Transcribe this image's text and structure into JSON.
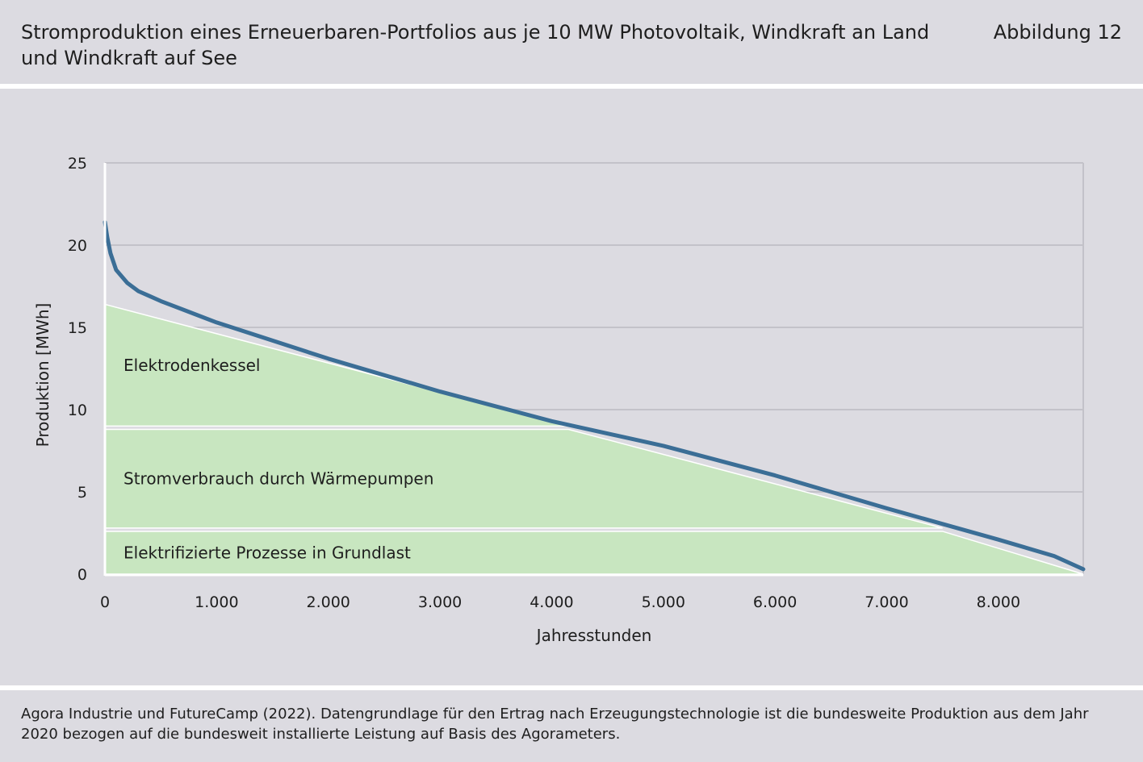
{
  "header": {
    "title": "Stromproduktion eines Erneuerbaren-Portfolios aus je 10 MW Photovoltaik, Windkraft an Land und Windkraft auf See",
    "figure_label": "Abbildung 12"
  },
  "footer": {
    "source": "Agora Industrie und FutureCamp (2022). Datengrundlage für den Ertrag nach Erzeugungstechnologie ist die bundesweite Produktion aus dem Jahr 2020 bezogen auf die bundesweit installierte Leistung auf Basis des Agorameters."
  },
  "colors": {
    "line": "#3b6e96",
    "fill": "#c8e6c0",
    "grid": "#c3c2c9",
    "plot_bg": "#dcdbe1",
    "separator": "#ffffff"
  },
  "chart_data": {
    "type": "line",
    "title": "",
    "xlabel": "Jahresstunden",
    "ylabel": "Produktion [MWh]",
    "xlim": [
      0,
      8760
    ],
    "ylim": [
      0,
      25
    ],
    "x_ticks": [
      0,
      1000,
      2000,
      3000,
      4000,
      5000,
      6000,
      7000,
      8000
    ],
    "x_tick_labels": [
      "0",
      "1.000",
      "2.000",
      "3.000",
      "4.000",
      "5.000",
      "6.000",
      "7.000",
      "8.000"
    ],
    "y_ticks": [
      0,
      5,
      10,
      15,
      20,
      25
    ],
    "y_tick_labels": [
      "0",
      "5",
      "10",
      "15",
      "20",
      "25"
    ],
    "grid": true,
    "line_series": {
      "x": [
        0,
        20,
        50,
        100,
        200,
        300,
        400,
        500,
        1000,
        2000,
        3000,
        4000,
        5000,
        6000,
        7000,
        8000,
        8500,
        8760
      ],
      "y": [
        21.4,
        20.5,
        19.5,
        18.5,
        17.7,
        17.2,
        16.9,
        16.6,
        15.3,
        13.1,
        11.1,
        9.3,
        7.8,
        6.0,
        4.0,
        2.1,
        1.1,
        0.3
      ]
    },
    "bands": [
      {
        "label": "Elektrifizierte Prozesse in Grundlast",
        "bottom": 0,
        "top": 2.6,
        "x_end_top": 7500,
        "x_end_bottom": 8760
      },
      {
        "label": "Stromverbrauch durch Wärmepumpen",
        "bottom": 2.8,
        "top": 8.8,
        "x_end_top": 4150,
        "x_end_bottom": 7500
      },
      {
        "label": "Elektrodenkessel",
        "bottom": 9.0,
        "top": 16.4,
        "x_end_top": 0,
        "x_end_bottom": 4150
      }
    ]
  }
}
